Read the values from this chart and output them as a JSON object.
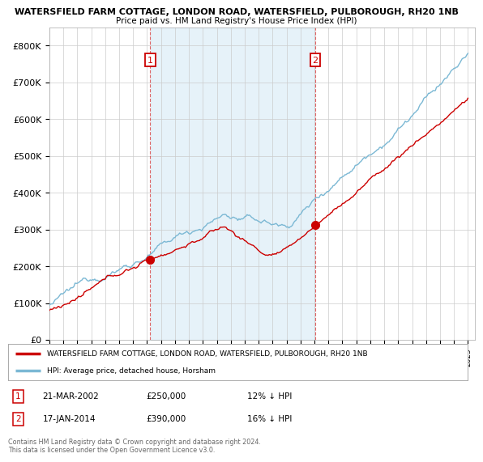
{
  "title1": "WATERSFIELD FARM COTTAGE, LONDON ROAD, WATERSFIELD, PULBOROUGH, RH20 1NB",
  "title2": "Price paid vs. HM Land Registry's House Price Index (HPI)",
  "ylabel_ticks": [
    "£0",
    "£100K",
    "£200K",
    "£300K",
    "£400K",
    "£500K",
    "£600K",
    "£700K",
    "£800K"
  ],
  "ytick_values": [
    0,
    100000,
    200000,
    300000,
    400000,
    500000,
    600000,
    700000,
    800000
  ],
  "ylim": [
    0,
    850000
  ],
  "hpi_color": "#7bb8d4",
  "hpi_fill_color": "#d6eaf5",
  "price_color": "#cc0000",
  "marker1_date": 2002.22,
  "marker1_value": 250000,
  "marker2_date": 2014.05,
  "marker2_value": 390000,
  "legend_label_red": "WATERSFIELD FARM COTTAGE, LONDON ROAD, WATERSFIELD, PULBOROUGH, RH20 1NB",
  "legend_label_blue": "HPI: Average price, detached house, Horsham",
  "annotation1": [
    "1",
    "21-MAR-2002",
    "£250,000",
    "12% ↓ HPI"
  ],
  "annotation2": [
    "2",
    "17-JAN-2014",
    "£390,000",
    "16% ↓ HPI"
  ],
  "copyright_text": "Contains HM Land Registry data © Crown copyright and database right 2024.\nThis data is licensed under the Open Government Licence v3.0.",
  "background_color": "#ffffff",
  "grid_color": "#cccccc",
  "xlim_start": 1995,
  "xlim_end": 2025.5
}
